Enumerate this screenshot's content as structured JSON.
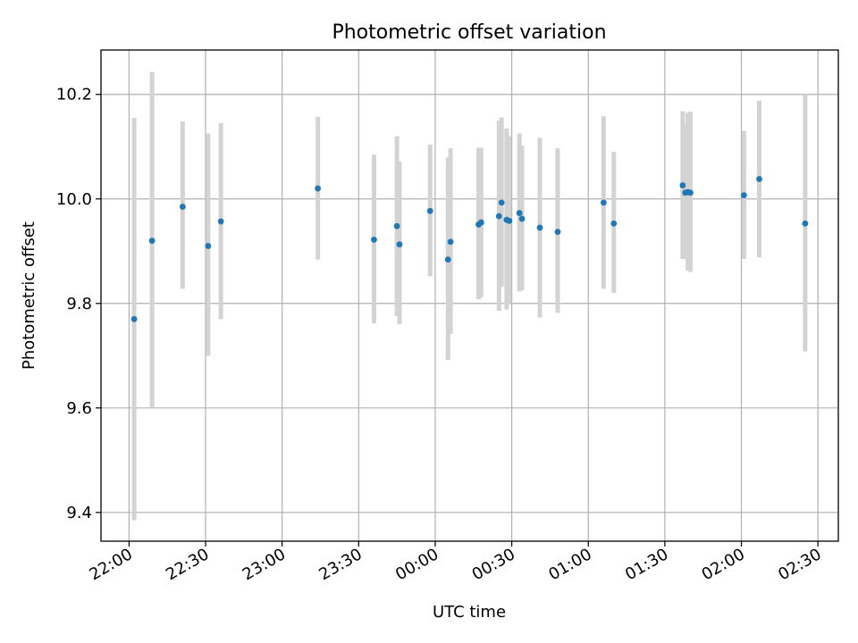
{
  "chart_data": {
    "type": "scatter",
    "title": "Photometric offset variation",
    "xlabel": "UTC time",
    "ylabel": "Photometric offset",
    "x_axis": {
      "kind": "time",
      "range": [
        "21:49",
        "02:38"
      ],
      "ticks": [
        "22:00",
        "22:30",
        "23:00",
        "23:30",
        "00:00",
        "00:30",
        "01:00",
        "01:30",
        "02:00",
        "02:30"
      ],
      "tick_rotation": "30 degrees"
    },
    "y_axis": {
      "range": [
        9.345,
        10.285
      ],
      "ticks": [
        "9.4",
        "9.6",
        "9.8",
        "10.0",
        "10.2"
      ]
    },
    "grid": true,
    "legend": "none",
    "colors": {
      "points": "#1f77b4",
      "error_bars": "#d3d3d3",
      "grid": "#b0b0b0"
    },
    "points": [
      {
        "t": "22:02",
        "y": 9.77,
        "lo": 9.385,
        "hi": 10.155
      },
      {
        "t": "22:09",
        "y": 9.92,
        "lo": 9.6,
        "hi": 10.243
      },
      {
        "t": "22:21",
        "y": 9.985,
        "lo": 9.828,
        "hi": 10.148
      },
      {
        "t": "22:31",
        "y": 9.91,
        "lo": 9.7,
        "hi": 10.125
      },
      {
        "t": "22:36",
        "y": 9.957,
        "lo": 9.77,
        "hi": 10.145
      },
      {
        "t": "23:14",
        "y": 10.02,
        "lo": 9.884,
        "hi": 10.157
      },
      {
        "t": "23:36",
        "y": 9.922,
        "lo": 9.762,
        "hi": 10.085
      },
      {
        "t": "23:45",
        "y": 9.948,
        "lo": 9.776,
        "hi": 10.12
      },
      {
        "t": "23:46",
        "y": 9.913,
        "lo": 9.76,
        "hi": 10.072
      },
      {
        "t": "23:58",
        "y": 9.977,
        "lo": 9.852,
        "hi": 10.104
      },
      {
        "t": "00:05",
        "y": 9.884,
        "lo": 9.692,
        "hi": 10.079
      },
      {
        "t": "00:06",
        "y": 9.918,
        "lo": 9.742,
        "hi": 10.097
      },
      {
        "t": "00:17",
        "y": 9.951,
        "lo": 9.808,
        "hi": 10.098
      },
      {
        "t": "00:18",
        "y": 9.955,
        "lo": 9.812,
        "hi": 10.098
      },
      {
        "t": "00:25",
        "y": 9.967,
        "lo": 9.786,
        "hi": 10.15
      },
      {
        "t": "00:26",
        "y": 9.993,
        "lo": 9.832,
        "hi": 10.156
      },
      {
        "t": "00:28",
        "y": 9.96,
        "lo": 9.788,
        "hi": 10.135
      },
      {
        "t": "00:29",
        "y": 9.958,
        "lo": 9.798,
        "hi": 10.12
      },
      {
        "t": "00:33",
        "y": 9.973,
        "lo": 9.823,
        "hi": 10.125
      },
      {
        "t": "00:34",
        "y": 9.962,
        "lo": 9.825,
        "hi": 10.102
      },
      {
        "t": "00:41",
        "y": 9.945,
        "lo": 9.773,
        "hi": 10.117
      },
      {
        "t": "00:48",
        "y": 9.937,
        "lo": 9.782,
        "hi": 10.097
      },
      {
        "t": "01:06",
        "y": 9.993,
        "lo": 9.828,
        "hi": 10.158
      },
      {
        "t": "01:10",
        "y": 9.953,
        "lo": 9.82,
        "hi": 10.09
      },
      {
        "t": "01:37",
        "y": 10.026,
        "lo": 9.885,
        "hi": 10.168
      },
      {
        "t": "01:38",
        "y": 10.012,
        "lo": 9.885,
        "hi": 10.142
      },
      {
        "t": "01:39",
        "y": 10.013,
        "lo": 9.863,
        "hi": 10.165
      },
      {
        "t": "01:40",
        "y": 10.012,
        "lo": 9.86,
        "hi": 10.167
      },
      {
        "t": "02:01",
        "y": 10.007,
        "lo": 9.885,
        "hi": 10.13
      },
      {
        "t": "02:07",
        "y": 10.038,
        "lo": 9.888,
        "hi": 10.188
      },
      {
        "t": "02:25",
        "y": 9.953,
        "lo": 9.708,
        "hi": 10.2
      }
    ]
  }
}
